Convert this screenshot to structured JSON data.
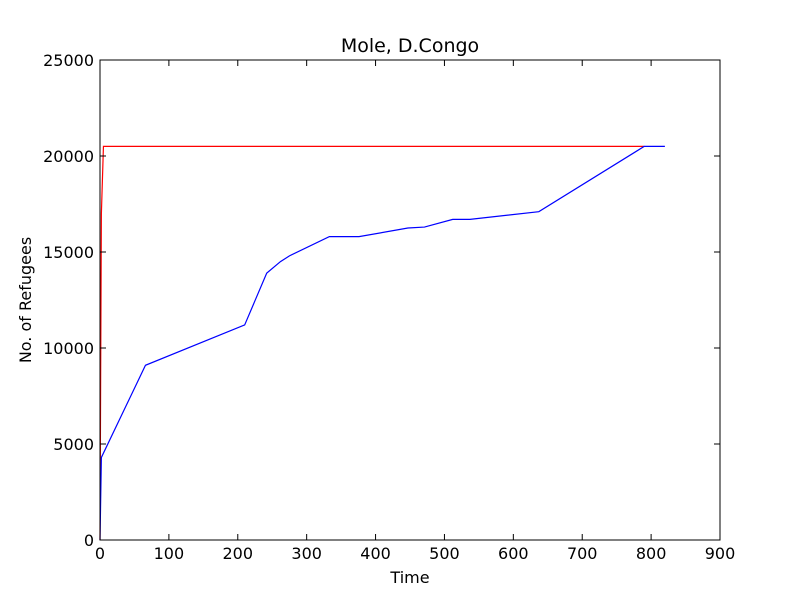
{
  "chart_data": {
    "type": "line",
    "title": "Mole, D.Congo",
    "xlabel": "Time",
    "ylabel": "No. of Refugees",
    "xlim": [
      0,
      900
    ],
    "ylim": [
      0,
      25000
    ],
    "xticks": [
      0,
      100,
      200,
      300,
      400,
      500,
      600,
      700,
      800,
      900
    ],
    "yticks": [
      0,
      5000,
      10000,
      15000,
      20000,
      25000
    ],
    "grid": false,
    "legend": "none",
    "series": [
      {
        "color": "#ff0000",
        "points": [
          [
            0,
            0
          ],
          [
            1,
            9000
          ],
          [
            2,
            17000
          ],
          [
            5,
            20500
          ],
          [
            790,
            20500
          ]
        ]
      },
      {
        "color": "#0000ff",
        "points": [
          [
            0,
            0
          ],
          [
            2,
            4300
          ],
          [
            66,
            9100
          ],
          [
            210,
            11200
          ],
          [
            242,
            13900
          ],
          [
            262,
            14500
          ],
          [
            275,
            14800
          ],
          [
            333,
            15800
          ],
          [
            376,
            15800
          ],
          [
            447,
            16250
          ],
          [
            471,
            16300
          ],
          [
            512,
            16700
          ],
          [
            537,
            16700
          ],
          [
            637,
            17100
          ],
          [
            790,
            20500
          ],
          [
            820,
            20500
          ]
        ]
      }
    ]
  }
}
